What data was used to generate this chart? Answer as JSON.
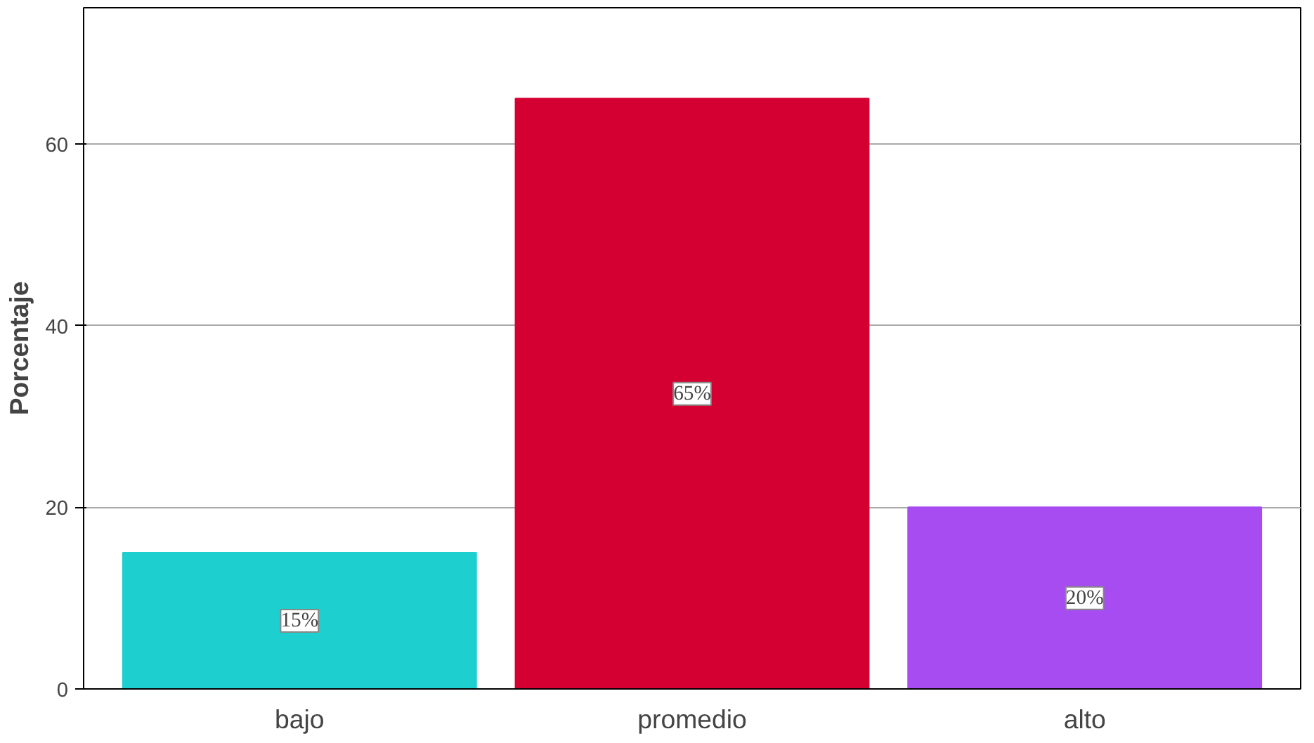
{
  "chart_data": {
    "type": "bar",
    "ylabel": "Porcentaje",
    "categories": [
      "bajo",
      "promedio",
      "alto"
    ],
    "values": [
      15,
      65,
      20
    ],
    "colors": [
      "#1ecfcf",
      "#d50032",
      "#a64cf0"
    ],
    "value_labels": [
      "15%",
      "65%",
      "20%"
    ],
    "ylim": [
      0,
      75
    ],
    "yticks": [
      0,
      20,
      40,
      60
    ],
    "grid": "y"
  }
}
